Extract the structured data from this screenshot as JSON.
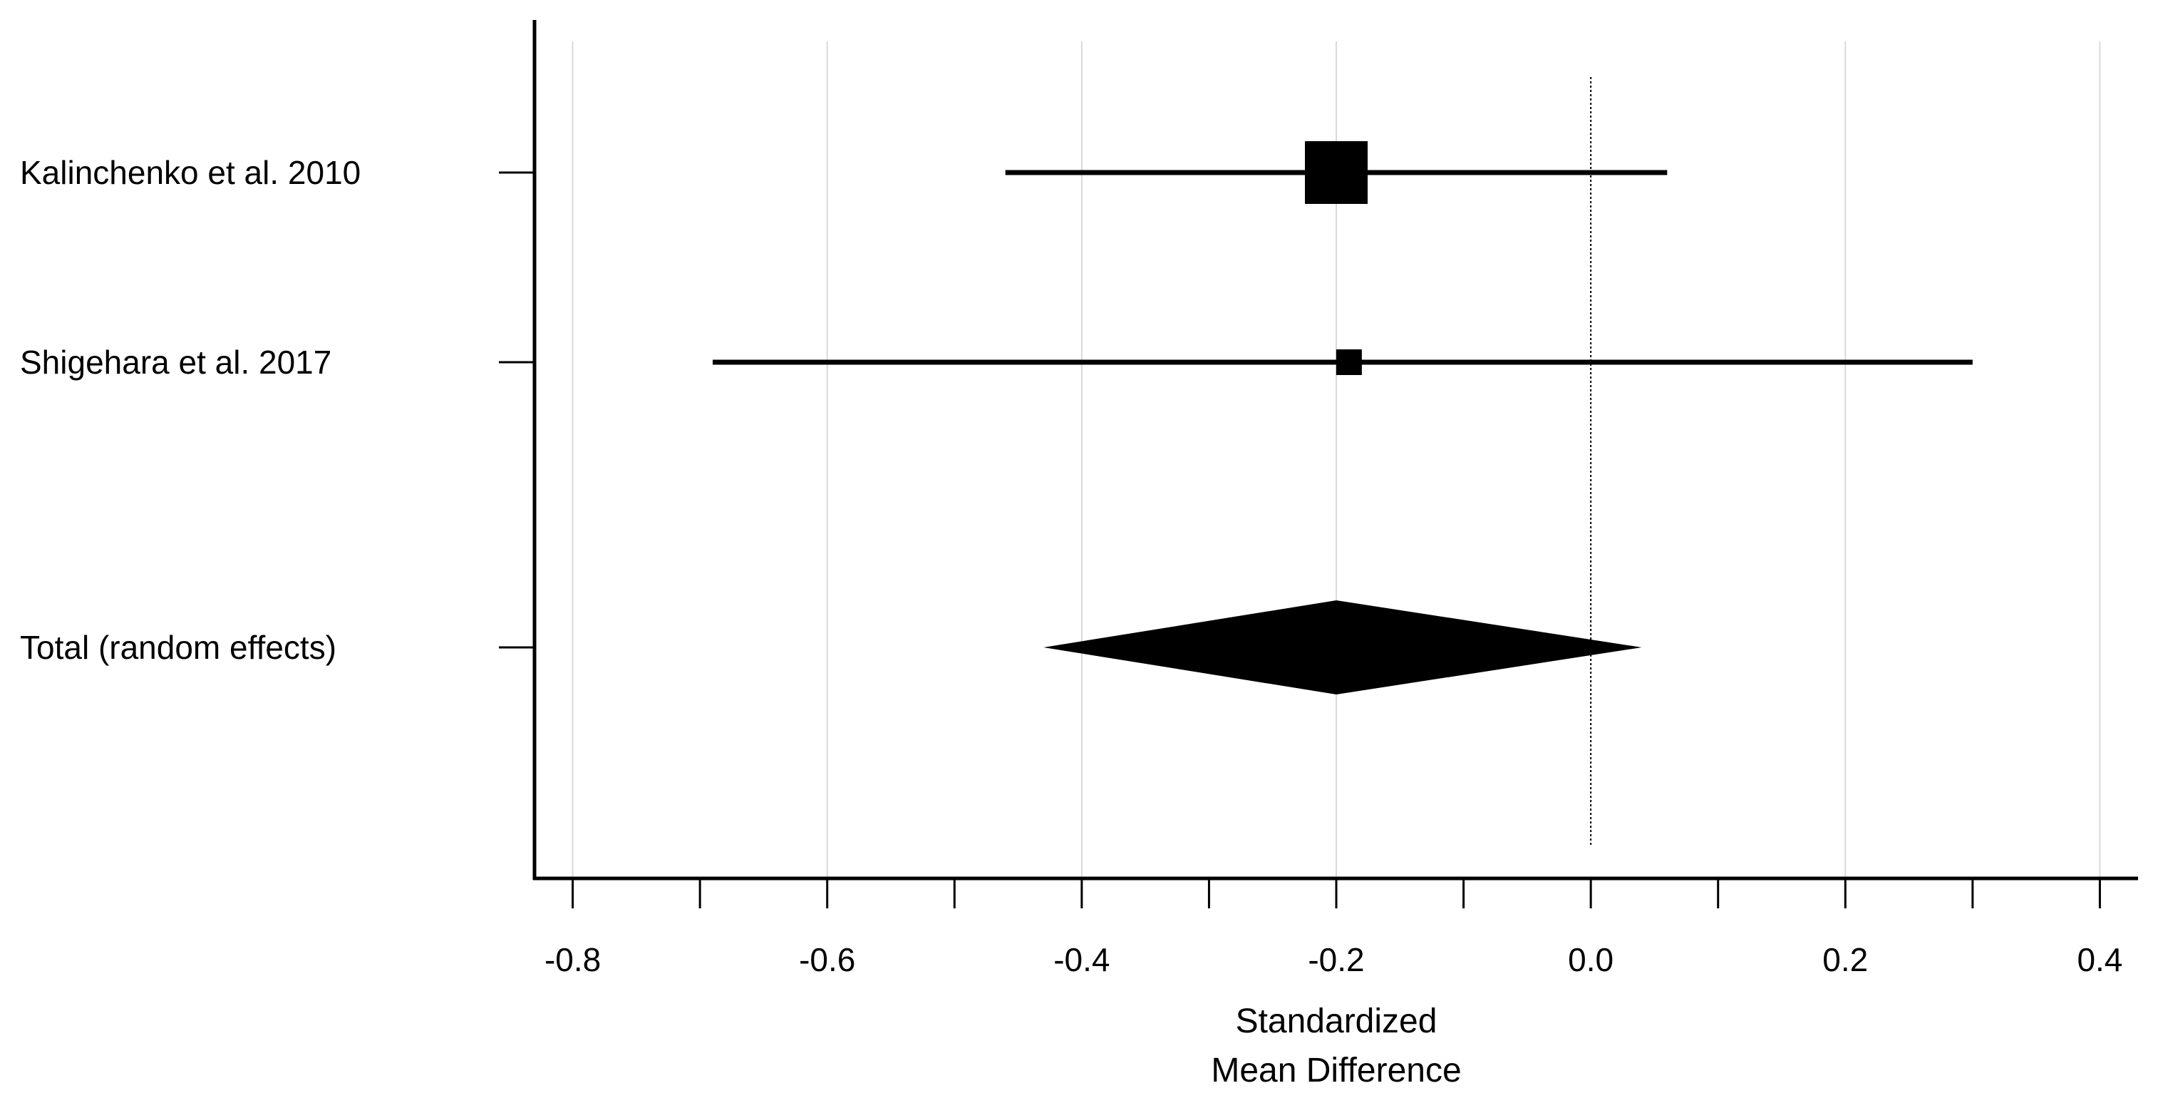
{
  "chart_data": {
    "type": "forest",
    "xlabel_lines": [
      "Standardized",
      "Mean Difference"
    ],
    "xlim": [
      -0.83,
      0.43
    ],
    "ticks": [
      -0.8,
      -0.7,
      -0.6,
      -0.5,
      -0.4,
      -0.3,
      -0.2,
      -0.1,
      0.0,
      0.1,
      0.2,
      0.3,
      0.4
    ],
    "tick_labels": [
      {
        "value": -0.8,
        "label": "-0.8"
      },
      {
        "value": -0.6,
        "label": "-0.6"
      },
      {
        "value": -0.4,
        "label": "-0.4"
      },
      {
        "value": -0.2,
        "label": "-0.2"
      },
      {
        "value": 0.0,
        "label": "0.0"
      },
      {
        "value": 0.2,
        "label": "0.2"
      },
      {
        "value": 0.4,
        "label": "0.4"
      }
    ],
    "grid_values": [
      -0.8,
      -0.6,
      -0.4,
      -0.2,
      0.2,
      0.4
    ],
    "null_line": 0.0,
    "studies": [
      {
        "label": "Kalinchenko et al. 2010",
        "estimate": -0.2,
        "ci_low": -0.46,
        "ci_high": 0.06,
        "weight_marker": "large"
      },
      {
        "label": "Shigehara et al. 2017",
        "estimate": -0.19,
        "ci_low": -0.69,
        "ci_high": 0.3,
        "weight_marker": "small"
      }
    ],
    "pooled": {
      "label": "Total (random effects)",
      "estimate": -0.2,
      "ci_low": -0.43,
      "ci_high": 0.04
    },
    "colors": {
      "marks": "#000000",
      "grid": "#d9d9d9",
      "axis": "#000000"
    }
  }
}
